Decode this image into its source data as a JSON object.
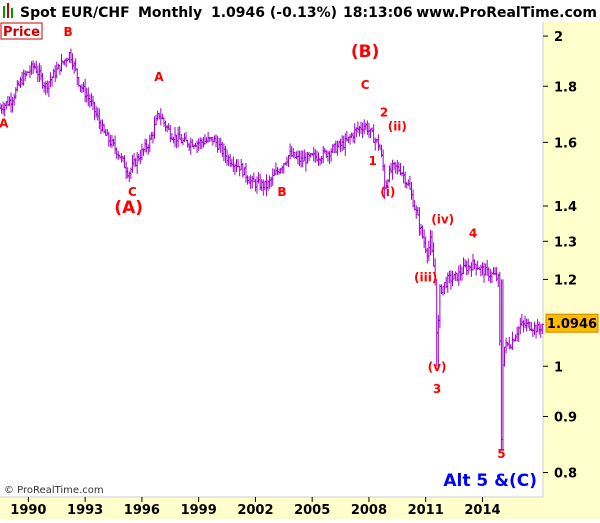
{
  "header": {
    "symbol": "Spot EUR/CHF",
    "period": "Monthly",
    "last_change": "1.0946 (-0.13%)",
    "time": "18:13:06",
    "site": "www.ProRealTime.com"
  },
  "panel_label": "Price",
  "footer": {
    "copyright": "© ProRealTime.com",
    "scenario": "Alt 5 &(C)"
  },
  "colors": {
    "bars": "#9900cc",
    "annotation": "#ff0000",
    "scenario_text": "#0000ff",
    "axis_bg": "#ffffcc",
    "last_price_bg": "#ffbb00"
  },
  "chart_data": {
    "type": "ohlc",
    "scale": "log",
    "xlim": [
      1988.5,
      2017.2
    ],
    "ylim": [
      0.76,
      2.06
    ],
    "x_ticks": [
      "1990",
      "1993",
      "1996",
      "1999",
      "2002",
      "2005",
      "2008",
      "2011",
      "2014"
    ],
    "y_ticks": [
      "0.8",
      "0.9",
      "1",
      "1.2",
      "1.3",
      "1.4",
      "1.6",
      "1.8",
      "2"
    ],
    "last_price": "1.0946",
    "path": [
      [
        1988.5,
        1.72
      ],
      [
        1989.1,
        1.75
      ],
      [
        1989.7,
        1.83
      ],
      [
        1990.3,
        1.88
      ],
      [
        1990.9,
        1.8
      ],
      [
        1991.6,
        1.87
      ],
      [
        1992.2,
        1.93
      ],
      [
        1992.7,
        1.81
      ],
      [
        1993.3,
        1.74
      ],
      [
        1994.0,
        1.63
      ],
      [
        1994.7,
        1.57
      ],
      [
        1995.3,
        1.5
      ],
      [
        1995.8,
        1.55
      ],
      [
        1996.4,
        1.6
      ],
      [
        1996.9,
        1.7
      ],
      [
        1997.5,
        1.63
      ],
      [
        1998.2,
        1.6
      ],
      [
        1999.0,
        1.6
      ],
      [
        1999.8,
        1.61
      ],
      [
        2000.5,
        1.55
      ],
      [
        2001.2,
        1.52
      ],
      [
        2001.8,
        1.47
      ],
      [
        2002.6,
        1.46
      ],
      [
        2003.1,
        1.5
      ],
      [
        2003.8,
        1.56
      ],
      [
        2004.4,
        1.54
      ],
      [
        2005.0,
        1.55
      ],
      [
        2005.6,
        1.56
      ],
      [
        2006.2,
        1.58
      ],
      [
        2006.8,
        1.6
      ],
      [
        2007.3,
        1.64
      ],
      [
        2007.8,
        1.66
      ],
      [
        2008.0,
        1.64
      ],
      [
        2008.2,
        1.62
      ],
      [
        2008.55,
        1.59
      ],
      [
        2008.75,
        1.52
      ],
      [
        2008.85,
        1.45
      ],
      [
        2009.0,
        1.49
      ],
      [
        2009.3,
        1.52
      ],
      [
        2009.7,
        1.51
      ],
      [
        2010.1,
        1.46
      ],
      [
        2010.5,
        1.38
      ],
      [
        2010.9,
        1.3
      ],
      [
        2011.1,
        1.27
      ],
      [
        2011.25,
        1.3
      ],
      [
        2011.5,
        1.2
      ],
      [
        2011.62,
        1.03
      ],
      [
        2011.72,
        1.17
      ],
      [
        2012.2,
        1.2
      ],
      [
        2012.6,
        1.205
      ],
      [
        2013.1,
        1.23
      ],
      [
        2013.6,
        1.24
      ],
      [
        2014.1,
        1.22
      ],
      [
        2014.6,
        1.21
      ],
      [
        2014.85,
        1.2
      ],
      [
        2015.0,
        0.86
      ],
      [
        2015.1,
        1.04
      ],
      [
        2015.5,
        1.05
      ],
      [
        2016.0,
        1.09
      ],
      [
        2016.5,
        1.09
      ],
      [
        2017.0,
        1.08
      ],
      [
        2017.2,
        1.0946
      ]
    ],
    "annotations": [
      {
        "text": "A",
        "x": 1988.7,
        "y": 1.65
      },
      {
        "text": "B",
        "x": 1992.1,
        "y": 2.0
      },
      {
        "text": "A",
        "x": 1996.9,
        "y": 1.82
      },
      {
        "text": "C",
        "x": 1995.5,
        "y": 1.43
      },
      {
        "text": "(A)",
        "x": 1995.3,
        "y": 1.38,
        "big": true
      },
      {
        "text": "B",
        "x": 2003.4,
        "y": 1.43
      },
      {
        "text": "(B)",
        "x": 2007.8,
        "y": 1.915,
        "big": true
      },
      {
        "text": "C",
        "x": 2007.8,
        "y": 1.79
      },
      {
        "text": "2",
        "x": 2008.8,
        "y": 1.69
      },
      {
        "text": "(ii)",
        "x": 2009.5,
        "y": 1.64
      },
      {
        "text": "1",
        "x": 2008.2,
        "y": 1.525
      },
      {
        "text": "(i)",
        "x": 2009.0,
        "y": 1.43
      },
      {
        "text": "(iv)",
        "x": 2011.9,
        "y": 1.35
      },
      {
        "text": "4",
        "x": 2013.5,
        "y": 1.31
      },
      {
        "text": "(iii)",
        "x": 2011.0,
        "y": 1.195
      },
      {
        "text": "(v)",
        "x": 2011.6,
        "y": 0.99
      },
      {
        "text": "3",
        "x": 2011.6,
        "y": 0.945
      },
      {
        "text": "5",
        "x": 2015.0,
        "y": 0.825
      }
    ]
  }
}
